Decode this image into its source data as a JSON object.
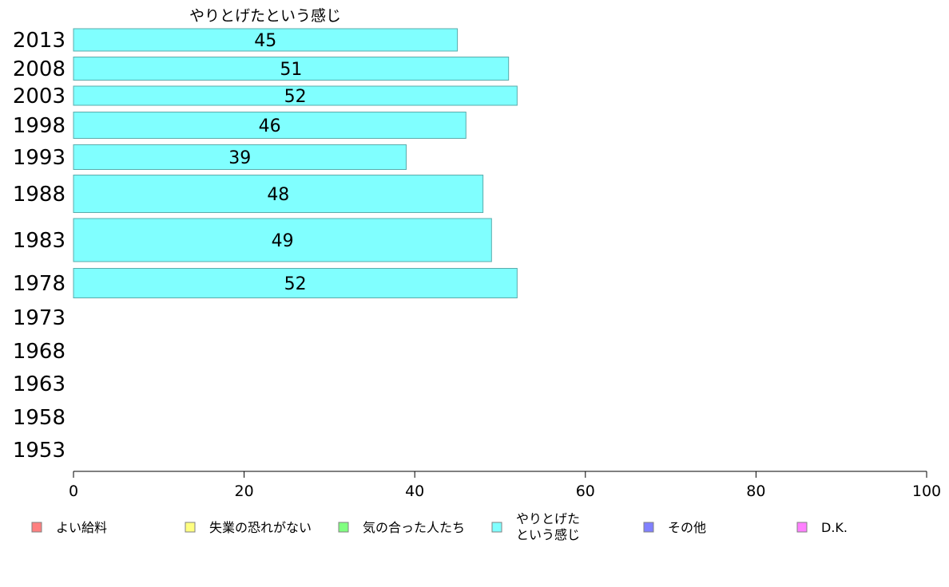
{
  "chart_data": {
    "type": "bar",
    "orientation": "horizontal",
    "title": "やりとげたという感じ",
    "categories": [
      "2013",
      "2008",
      "2003",
      "1998",
      "1993",
      "1988",
      "1983",
      "1978",
      "1973",
      "1968",
      "1963",
      "1958",
      "1953"
    ],
    "series": [
      {
        "name": "やりとげたという感じ",
        "values": [
          45,
          51,
          52,
          46,
          39,
          48,
          49,
          52,
          null,
          null,
          null,
          null,
          null
        ],
        "color": "#80ffff"
      }
    ],
    "xlim": [
      0,
      100
    ],
    "x_ticks": [
      "0",
      "20",
      "40",
      "60",
      "80",
      "100"
    ],
    "grid": false,
    "legend": {
      "placement": "bottom",
      "items": [
        {
          "label": "よい給料",
          "color": "#ff8080"
        },
        {
          "label": "失業の恐れがない",
          "color": "#ffff80"
        },
        {
          "label": "気の合った人たち",
          "color": "#80ff80"
        },
        {
          "label": "やりとげた\nという感じ",
          "color": "#80ffff"
        },
        {
          "label": "その他",
          "color": "#8080ff"
        },
        {
          "label": "D.K.",
          "color": "#ff80ff"
        }
      ]
    }
  }
}
